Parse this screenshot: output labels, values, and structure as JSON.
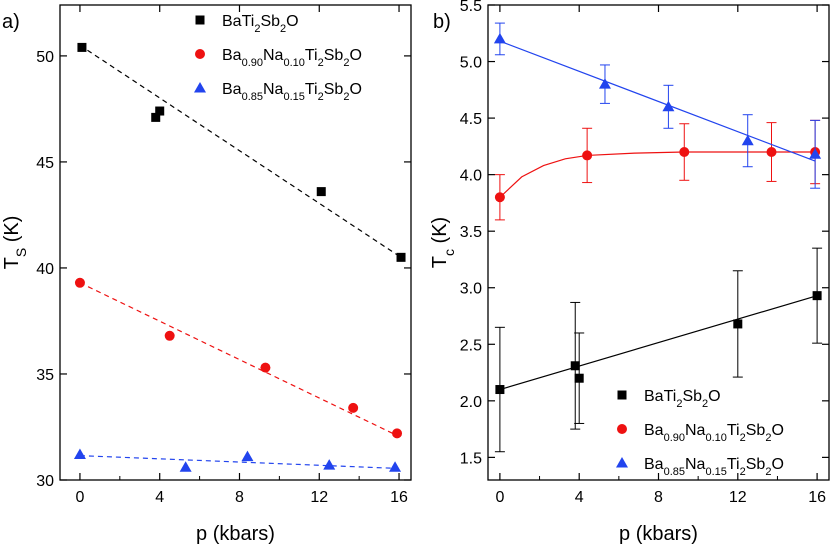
{
  "colors": {
    "black": "#000000",
    "red": "#ee1111",
    "blue": "#2244ee",
    "axis": "#000000"
  },
  "chart_data": [
    {
      "type": "scatter",
      "panel_label": "a)",
      "xlabel": "p (kbars)",
      "ylabel": {
        "main": "T",
        "sub": "S",
        "suffix": " (K)"
      },
      "xlim": [
        -1,
        16.6
      ],
      "ylim": [
        30,
        52.4
      ],
      "xticks": [
        0,
        4,
        8,
        12,
        16
      ],
      "yticks": [
        30,
        35,
        40,
        45,
        50
      ],
      "legend_position": "top-right",
      "series": [
        {
          "name": "BaTi2Sb2O",
          "label_parts": [
            [
              "BaTi",
              ""
            ],
            [
              "2",
              "sub"
            ],
            [
              "Sb",
              ""
            ],
            [
              "2",
              "sub"
            ],
            [
              "O",
              ""
            ]
          ],
          "marker": "square",
          "color": "#000000",
          "x": [
            0.1,
            3.8,
            4.0,
            12.1,
            16.1
          ],
          "y": [
            50.4,
            47.1,
            47.4,
            43.6,
            40.5
          ],
          "fit": [
            [
              0,
              50.5
            ],
            [
              16.1,
              40.5
            ]
          ]
        },
        {
          "name": "Ba0.90Na0.10Ti2Sb2O",
          "label_parts": [
            [
              "Ba",
              ""
            ],
            [
              "0.90",
              "sub"
            ],
            [
              "Na",
              ""
            ],
            [
              "0.10",
              "sub"
            ],
            [
              "Ti",
              ""
            ],
            [
              "2",
              "sub"
            ],
            [
              "Sb",
              ""
            ],
            [
              "2",
              "sub"
            ],
            [
              "O",
              ""
            ]
          ],
          "marker": "circle",
          "color": "#ee1111",
          "x": [
            0.0,
            4.5,
            9.3,
            13.7,
            15.9
          ],
          "y": [
            39.3,
            36.8,
            35.3,
            33.4,
            32.2
          ],
          "fit": [
            [
              0,
              39.3
            ],
            [
              15.9,
              32.1
            ]
          ]
        },
        {
          "name": "Ba0.85Na0.15Ti2Sb2O",
          "label_parts": [
            [
              "Ba",
              ""
            ],
            [
              "0.85",
              "sub"
            ],
            [
              "Na",
              ""
            ],
            [
              "0.15",
              "sub"
            ],
            [
              "Ti",
              ""
            ],
            [
              "2",
              "sub"
            ],
            [
              "Sb",
              ""
            ],
            [
              "2",
              "sub"
            ],
            [
              "O",
              ""
            ]
          ],
          "marker": "triangle",
          "color": "#2244ee",
          "x": [
            0.0,
            5.3,
            8.4,
            12.5,
            15.8
          ],
          "y": [
            31.2,
            30.6,
            31.1,
            30.7,
            30.6
          ],
          "fit": [
            [
              0,
              31.15
            ],
            [
              15.8,
              30.55
            ]
          ]
        }
      ]
    },
    {
      "type": "scatter",
      "panel_label": "b)",
      "xlabel": "p (kbars)",
      "ylabel": {
        "main": "T",
        "sub": "c",
        "suffix": " (K)"
      },
      "xlim": [
        -0.6,
        16.6
      ],
      "ylim": [
        1.3,
        5.5
      ],
      "xticks": [
        0,
        4,
        8,
        12,
        16
      ],
      "yticks": [
        1.5,
        2.0,
        2.5,
        3.0,
        3.5,
        4.0,
        4.5,
        5.0,
        5.5
      ],
      "ytick_labels": [
        "1.5",
        "2.0",
        "2.5",
        "3.0",
        "3.5",
        "4.0",
        "4.5",
        "5.0",
        "5.5"
      ],
      "legend_position": "bottom-right",
      "series": [
        {
          "name": "BaTi2Sb2O",
          "label_parts": [
            [
              "BaTi",
              ""
            ],
            [
              "2",
              "sub"
            ],
            [
              "Sb",
              ""
            ],
            [
              "2",
              "sub"
            ],
            [
              "O",
              ""
            ]
          ],
          "marker": "square",
          "color": "#000000",
          "x": [
            0.0,
            3.8,
            4.0,
            12.0,
            16.0
          ],
          "y": [
            2.1,
            2.31,
            2.2,
            2.68,
            2.93
          ],
          "err": [
            0.55,
            0.56,
            0.4,
            0.47,
            0.42
          ],
          "fit": [
            [
              0,
              2.1
            ],
            [
              16.0,
              2.93
            ]
          ]
        },
        {
          "name": "Ba0.90Na0.10Ti2Sb2O",
          "label_parts": [
            [
              "Ba",
              ""
            ],
            [
              "0.90",
              "sub"
            ],
            [
              "Na",
              ""
            ],
            [
              "0.10",
              "sub"
            ],
            [
              "Ti",
              ""
            ],
            [
              "2",
              "sub"
            ],
            [
              "Sb",
              ""
            ],
            [
              "2",
              "sub"
            ],
            [
              "O",
              ""
            ]
          ],
          "marker": "circle",
          "color": "#ee1111",
          "x": [
            0.0,
            4.4,
            9.3,
            13.7,
            15.9
          ],
          "y": [
            3.8,
            4.17,
            4.2,
            4.2,
            4.2
          ],
          "err": [
            0.2,
            0.24,
            0.25,
            0.26,
            0.28
          ],
          "fit_curve": [
            [
              0,
              3.8
            ],
            [
              1.1,
              3.98
            ],
            [
              2.2,
              4.08
            ],
            [
              3.3,
              4.14
            ],
            [
              4.4,
              4.17
            ],
            [
              6.8,
              4.19
            ],
            [
              9.3,
              4.2
            ],
            [
              13.7,
              4.2
            ],
            [
              15.9,
              4.2
            ]
          ]
        },
        {
          "name": "Ba0.85Na0.15Ti2Sb2O",
          "label_parts": [
            [
              "Ba",
              ""
            ],
            [
              "0.85",
              "sub"
            ],
            [
              "Na",
              ""
            ],
            [
              "0.15",
              "sub"
            ],
            [
              "Ti",
              ""
            ],
            [
              "2",
              "sub"
            ],
            [
              "Sb",
              ""
            ],
            [
              "2",
              "sub"
            ],
            [
              "O",
              ""
            ]
          ],
          "marker": "triangle",
          "color": "#2244ee",
          "x": [
            0.0,
            5.3,
            8.5,
            12.5,
            15.9
          ],
          "y": [
            5.2,
            4.8,
            4.6,
            4.3,
            4.18
          ],
          "err": [
            0.14,
            0.17,
            0.19,
            0.23,
            0.3
          ],
          "fit": [
            [
              0,
              5.18
            ],
            [
              15.9,
              4.12
            ]
          ]
        }
      ]
    }
  ]
}
